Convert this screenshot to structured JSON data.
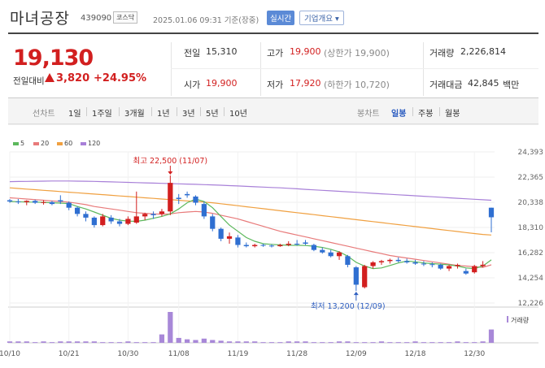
{
  "header": {
    "name": "마녀공장",
    "code": "439090",
    "market": "코스닥",
    "datetime": "2025.01.06 09:31 기준(장중)",
    "realtime_btn": "실시간",
    "overview_btn": "기업개요 ▾"
  },
  "quote": {
    "price": "19,130",
    "change_label": "전일대비",
    "change_value": "3,820",
    "change_pct": "+24.95%"
  },
  "stats": {
    "prev_close_label": "전일",
    "prev_close": "15,310",
    "open_label": "시가",
    "open": "19,900",
    "high_label": "고가",
    "high": "19,900",
    "upper_limit": "(상한가 19,900)",
    "low_label": "저가",
    "low": "17,920",
    "lower_limit": "(하한가 10,720)",
    "volume_label": "거래량",
    "volume": "2,226,814",
    "amount_label": "거래대금",
    "amount": "42,845",
    "amount_unit": "백만"
  },
  "period_bar": {
    "line_label": "선차트",
    "line_items": [
      "1일",
      "1주일",
      "3개월",
      "1년",
      "3년",
      "5년",
      "10년"
    ],
    "candle_label": "봉차트",
    "candle_items": [
      "일봉",
      "주봉",
      "월봉"
    ],
    "active_candle": "일봉"
  },
  "colors": {
    "up": "#d21f1f",
    "down": "#2f6fd1",
    "ma5": "#5cb85c",
    "ma20": "#e87a7a",
    "ma60": "#f0a040",
    "ma120": "#a880d8"
  },
  "chart_data": {
    "type": "candlestick",
    "legend": [
      {
        "name": "5",
        "color": "#5cb85c"
      },
      {
        "name": "20",
        "color": "#e87a7a"
      },
      {
        "name": "60",
        "color": "#f0a040"
      },
      {
        "name": "120",
        "color": "#a880d8"
      }
    ],
    "y_ticks": [
      "24,393",
      "22,365",
      "20,338",
      "18,310",
      "16,282",
      "14,254",
      "12,226"
    ],
    "ylim": [
      12226,
      24393
    ],
    "x_ticks": [
      "10/10",
      "10/21",
      "10/30",
      "11/08",
      "11/19",
      "11/28",
      "12/09",
      "12/18",
      "12/30"
    ],
    "x_tick_index": [
      0,
      7,
      14,
      20,
      27,
      34,
      41,
      48,
      55
    ],
    "annot_high": "최고 22,500 (11/07)",
    "annot_low": "최저 13,200 (12/09)",
    "volume_label": "거래량",
    "candles": [
      [
        20500,
        20600,
        20300,
        20400
      ],
      [
        20400,
        20600,
        20200,
        20350
      ],
      [
        20350,
        20500,
        20100,
        20450
      ],
      [
        20450,
        20550,
        20200,
        20300
      ],
      [
        20300,
        20500,
        20150,
        20350
      ],
      [
        20350,
        20450,
        20100,
        20200
      ],
      [
        20500,
        20900,
        20200,
        20400
      ],
      [
        20300,
        20400,
        19700,
        19900
      ],
      [
        19900,
        20000,
        19200,
        19400
      ],
      [
        19400,
        19600,
        18800,
        19100
      ],
      [
        19100,
        19200,
        18300,
        18500
      ],
      [
        18500,
        19400,
        18400,
        19200
      ],
      [
        19100,
        19300,
        18600,
        18800
      ],
      [
        18800,
        19000,
        18400,
        18600
      ],
      [
        18600,
        19200,
        18500,
        19000
      ],
      [
        18700,
        21200,
        18600,
        19200
      ],
      [
        19200,
        19500,
        18900,
        19400
      ],
      [
        19400,
        19600,
        19000,
        19300
      ],
      [
        19400,
        19800,
        19200,
        19600
      ],
      [
        19600,
        22500,
        19300,
        21900
      ],
      [
        20700,
        21000,
        20200,
        20600
      ],
      [
        21000,
        21200,
        20700,
        20900
      ],
      [
        20800,
        20900,
        20100,
        20300
      ],
      [
        20200,
        20400,
        19000,
        19200
      ],
      [
        19200,
        19400,
        18000,
        18200
      ],
      [
        18200,
        18300,
        17200,
        17400
      ],
      [
        17400,
        17900,
        17000,
        17600
      ],
      [
        17500,
        17700,
        16700,
        16900
      ],
      [
        16900,
        17100,
        16700,
        16800
      ],
      [
        16800,
        17000,
        16700,
        16900
      ],
      [
        16900,
        17000,
        16750,
        16850
      ],
      [
        16850,
        16950,
        16700,
        16800
      ],
      [
        16800,
        17000,
        16750,
        16900
      ],
      [
        16900,
        17200,
        16800,
        17000
      ],
      [
        17000,
        17300,
        16850,
        16950
      ],
      [
        17100,
        17300,
        16900,
        17000
      ],
      [
        16900,
        17000,
        16400,
        16500
      ],
      [
        16500,
        16700,
        16200,
        16300
      ],
      [
        16300,
        16500,
        15900,
        16000
      ],
      [
        16000,
        16400,
        15700,
        16300
      ],
      [
        16000,
        16100,
        15100,
        15300
      ],
      [
        15100,
        15200,
        13200,
        13700
      ],
      [
        13500,
        15300,
        13400,
        15200
      ],
      [
        15200,
        15600,
        15000,
        15500
      ],
      [
        15500,
        15700,
        15300,
        15600
      ],
      [
        15600,
        15800,
        15400,
        15700
      ],
      [
        15700,
        15900,
        15500,
        15600
      ],
      [
        15600,
        15800,
        15400,
        15500
      ],
      [
        15500,
        15700,
        15300,
        15400
      ],
      [
        15400,
        15600,
        15200,
        15350
      ],
      [
        15350,
        15500,
        15100,
        15300
      ],
      [
        15300,
        15400,
        14900,
        15000
      ],
      [
        15000,
        15300,
        14800,
        15200
      ],
      [
        15200,
        15400,
        15000,
        15300
      ],
      [
        14800,
        15000,
        14500,
        14600
      ],
      [
        14700,
        15300,
        14600,
        15200
      ],
      [
        15200,
        15600,
        15100,
        15310
      ],
      [
        19900,
        19900,
        17920,
        19130
      ]
    ],
    "volumes": [
      2,
      2,
      2,
      1,
      2,
      1,
      2,
      2,
      2,
      2,
      2,
      1,
      1,
      1,
      2,
      1,
      1,
      1,
      12,
      44,
      7,
      5,
      4,
      6,
      4,
      3,
      2,
      2,
      2,
      2,
      1,
      1,
      1,
      2,
      2,
      2,
      1,
      1,
      1,
      2,
      2,
      1,
      1,
      1,
      2,
      1,
      1,
      1,
      2,
      1,
      1,
      1,
      1,
      2,
      1,
      1,
      2,
      19
    ],
    "ma5": [
      20400,
      20380,
      20360,
      20350,
      20330,
      20300,
      20270,
      20230,
      20000,
      19800,
      19550,
      19300,
      19050,
      18900,
      18820,
      18800,
      18900,
      19050,
      19200,
      19400,
      19800,
      20300,
      20600,
      20400,
      19900,
      19200,
      18500,
      18000,
      17500,
      17200,
      17000,
      16950,
      16900,
      16880,
      16870,
      16860,
      16800,
      16700,
      16550,
      16350,
      16000,
      15500,
      15200,
      15000,
      15050,
      15250,
      15450,
      15600,
      15550,
      15450,
      15400,
      15350,
      15300,
      15200,
      15050,
      15000,
      15200,
      15700
    ],
    "ma20": [
      20700,
      20650,
      20600,
      20550,
      20500,
      20450,
      20400,
      20350,
      20250,
      20150,
      20000,
      19900,
      19800,
      19700,
      19600,
      19500,
      19450,
      19400,
      19380,
      19400,
      19500,
      19550,
      19600,
      19550,
      19450,
      19300,
      19150,
      19000,
      18800,
      18600,
      18400,
      18200,
      18000,
      17850,
      17700,
      17550,
      17400,
      17250,
      17100,
      16950,
      16800,
      16650,
      16500,
      16350,
      16200,
      16050,
      15950,
      15850,
      15750,
      15650,
      15550,
      15450,
      15350,
      15250,
      15200,
      15150,
      15100,
      15300
    ],
    "ma60": [
      21500,
      21450,
      21400,
      21350,
      21300,
      21250,
      21200,
      21150,
      21100,
      21050,
      21000,
      20950,
      20900,
      20850,
      20800,
      20750,
      20700,
      20650,
      20600,
      20550,
      20500,
      20450,
      20400,
      20350,
      20300,
      20220,
      20140,
      20060,
      19980,
      19900,
      19820,
      19740,
      19660,
      19580,
      19500,
      19420,
      19340,
      19260,
      19180,
      19100,
      19020,
      18940,
      18860,
      18780,
      18700,
      18620,
      18540,
      18460,
      18380,
      18300,
      18220,
      18140,
      18060,
      17980,
      17900,
      17820,
      17750,
      17700
    ],
    "ma120": [
      22000,
      22010,
      22020,
      22030,
      22040,
      22050,
      22050,
      22050,
      22040,
      22030,
      22020,
      22000,
      21980,
      21960,
      21940,
      21920,
      21900,
      21880,
      21860,
      21840,
      21820,
      21800,
      21780,
      21760,
      21740,
      21710,
      21680,
      21650,
      21620,
      21590,
      21560,
      21530,
      21500,
      21460,
      21420,
      21380,
      21340,
      21300,
      21260,
      21220,
      21180,
      21140,
      21100,
      21060,
      21020,
      20980,
      20940,
      20900,
      20860,
      20820,
      20780,
      20740,
      20700,
      20660,
      20620,
      20580,
      20540,
      20500
    ]
  }
}
